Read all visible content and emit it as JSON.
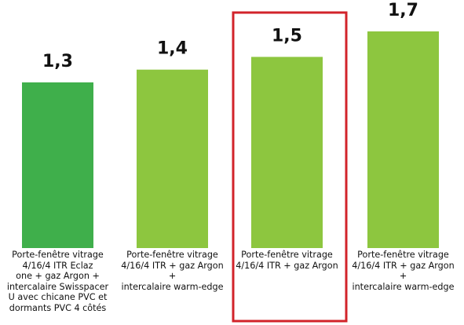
{
  "chart_data": {
    "type": "bar",
    "title": "",
    "xlabel": "",
    "ylabel": "",
    "categories": [
      [
        "Porte-fenêtre vitrage",
        "4/16/4 ITR Eclaz",
        "one + gaz Argon +",
        "intercalaire Swisspacer",
        "U avec chicane PVC et",
        "dormants PVC 4 côtés"
      ],
      [
        "Porte-fenêtre vitrage",
        "4/16/4 ITR + gaz Argon +",
        "intercalaire warm-edge"
      ],
      [
        "Porte-fenêtre vitrage",
        "4/16/4 ITR + gaz Argon"
      ],
      [
        "Porte-fenêtre vitrage",
        "4/16/4 ITR + gaz Argon +",
        "intercalaire warm-edge"
      ]
    ],
    "values": [
      1.3,
      1.4,
      1.5,
      1.7
    ],
    "value_labels": [
      "1,3",
      "1,4",
      "1,5",
      "1,7"
    ],
    "colors": [
      "#3faf4b",
      "#8dc63f",
      "#8dc63f",
      "#8dc63f"
    ],
    "highlight_index": 2,
    "highlight_color": "#d2232a",
    "grid": false,
    "legend": "none"
  }
}
